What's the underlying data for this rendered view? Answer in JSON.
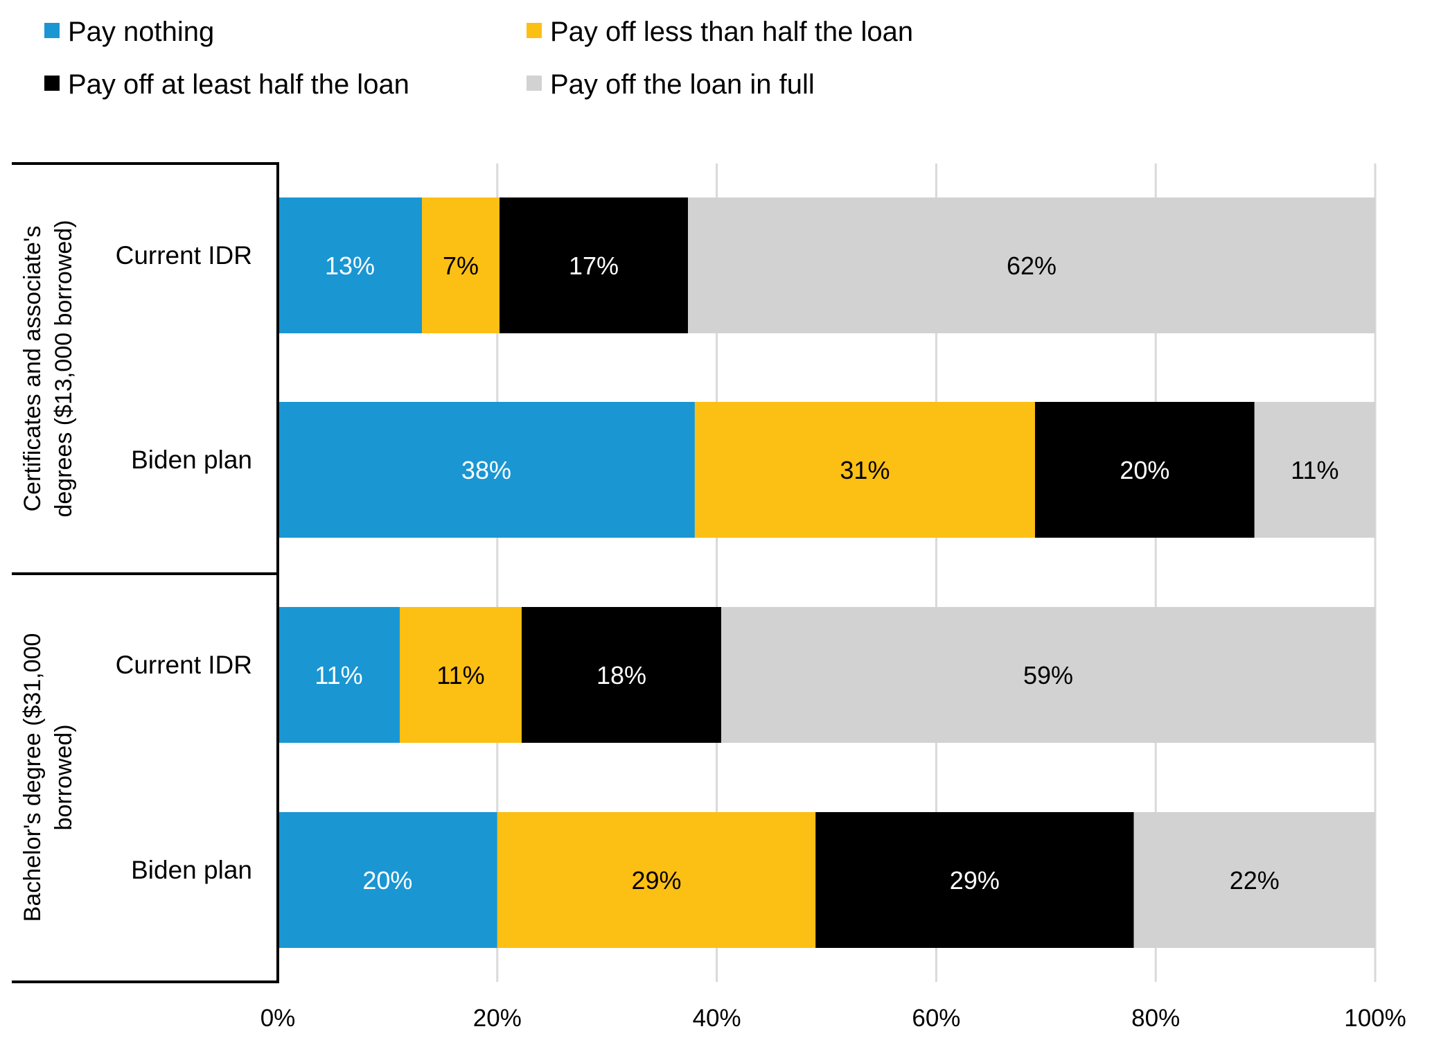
{
  "chart_data": {
    "type": "bar",
    "orientation": "horizontal",
    "stacked": true,
    "title": "",
    "xlabel": "",
    "ylabel": "",
    "xlim": [
      0,
      100
    ],
    "x_ticks": [
      "0%",
      "20%",
      "40%",
      "60%",
      "80%",
      "100%"
    ],
    "grid": true,
    "legend_position": "top",
    "groups": [
      {
        "label": "Certificates and associate's degrees ($13,000 borrowed)",
        "label_lines": [
          "Certificates and associate's",
          "degrees ($13,000 borrowed)"
        ]
      },
      {
        "label": "Bachelor's degree ($31,000 borrowed)",
        "label_lines": [
          "Bachelor's degree ($31,000",
          "borrowed)"
        ]
      }
    ],
    "categories": [
      {
        "group": 0,
        "label": "Current IDR"
      },
      {
        "group": 0,
        "label": "Biden plan"
      },
      {
        "group": 1,
        "label": "Current IDR"
      },
      {
        "group": 1,
        "label": "Biden plan"
      }
    ],
    "series": [
      {
        "name": "Pay nothing",
        "color": "#1a96d3",
        "label_color": "#ffffff",
        "values": [
          13,
          38,
          11,
          20
        ]
      },
      {
        "name": "Pay off less than half the loan",
        "color": "#fcbf14",
        "label_color": "#000000",
        "values": [
          7,
          31,
          11,
          29
        ]
      },
      {
        "name": "Pay off at least half the loan",
        "color": "#000000",
        "label_color": "#ffffff",
        "values": [
          17,
          20,
          18,
          29
        ]
      },
      {
        "name": "Pay off the loan in full",
        "color": "#d2d2d2",
        "label_color": "#000000",
        "values": [
          62,
          11,
          59,
          22
        ]
      }
    ]
  }
}
